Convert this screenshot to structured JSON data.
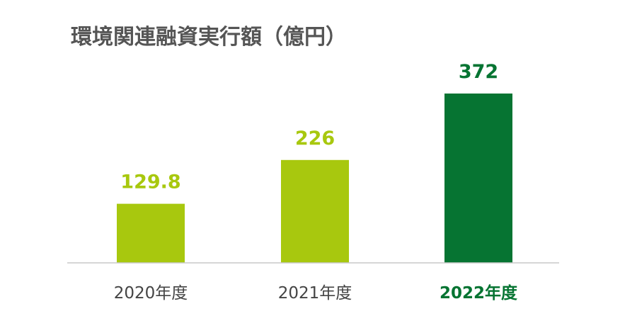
{
  "chart_data": {
    "type": "bar",
    "title": "環境関連融資実行額（億円）",
    "categories": [
      "2020年度",
      "2021年度",
      "2022年度"
    ],
    "values": [
      129.8,
      226,
      372
    ],
    "value_labels": [
      "129.8",
      "226",
      "372"
    ],
    "ylim": [
      0,
      400
    ],
    "grid": false,
    "legend": "none",
    "highlight_index": 2
  },
  "colors": {
    "title": "#555555",
    "bar": "#a8c80e",
    "bar_highlight": "#067432",
    "value_label": "#a8c80e",
    "value_label_highlight": "#067432",
    "category_label": "#444444",
    "category_label_highlight": "#067432",
    "baseline": "#c8c8c8"
  }
}
